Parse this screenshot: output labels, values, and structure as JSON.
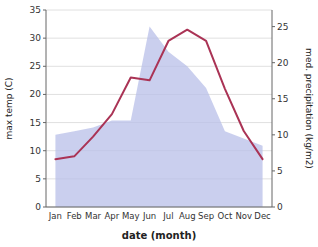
{
  "chart_data": {
    "type": "line",
    "xlabel": "date (month)",
    "ylabel": "max temp (C)",
    "y2label": "med. precipitation (kg/m2)",
    "categories": [
      "Jan",
      "Feb",
      "Mar",
      "Apr",
      "May",
      "Jun",
      "Jul",
      "Aug",
      "Sep",
      "Oct",
      "Nov",
      "Dec"
    ],
    "series": [
      {
        "type": "area",
        "axis": "y2",
        "color": "#b8bfe8",
        "values": [
          10.0,
          10.5,
          11.0,
          12.0,
          12.0,
          25.0,
          21.5,
          19.5,
          16.5,
          10.5,
          9.5,
          8.5
        ]
      },
      {
        "type": "line",
        "color": "#aa3355",
        "values": [
          8.5,
          9.0,
          12.5,
          16.5,
          23.0,
          22.5,
          29.5,
          31.5,
          29.5,
          21.0,
          13.5,
          8.5
        ]
      }
    ],
    "ylim": [
      0,
      35
    ],
    "yticks": [
      0,
      5,
      10,
      15,
      20,
      25,
      30,
      35
    ],
    "y2lim": [
      0,
      27.3
    ],
    "y2ticks": [
      0,
      5,
      10,
      15,
      20,
      25
    ],
    "grid": true
  }
}
